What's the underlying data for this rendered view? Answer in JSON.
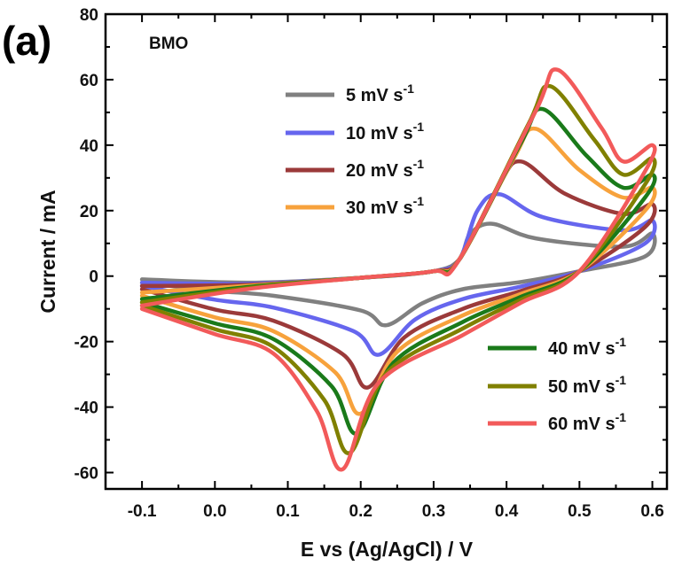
{
  "panel_label": "(a)",
  "chart_data": {
    "type": "line",
    "title": "BMO",
    "xlabel": "E vs (Ag/AgCl) / V",
    "ylabel": "Current / mA",
    "xlim": [
      -0.15,
      0.62
    ],
    "ylim": [
      -65,
      80
    ],
    "x_ticks": [
      "-0.1",
      "0.0",
      "0.1",
      "0.2",
      "0.3",
      "0.4",
      "0.5",
      "0.6"
    ],
    "y_ticks": [
      "80",
      "60",
      "40",
      "20",
      "0",
      "-20",
      "-40",
      "-60"
    ],
    "legend_placement": [
      "top-left (5–30 mV s-1)",
      "bottom-right (40–60 mV s-1)"
    ],
    "series": [
      {
        "name": "5 mV s",
        "unit_exp": "-1",
        "color": "#808080",
        "peak_anodic": [
          0.38,
          16
        ],
        "peak_cathodic": [
          0.235,
          -15
        ],
        "start": [
          -0.1,
          -1
        ],
        "end_top": 13,
        "end_bottom": 11,
        "plateau": 9,
        "oxidation_return": -4
      },
      {
        "name": "10 mV s",
        "unit_exp": "-1",
        "color": "#6666ee",
        "peak_anodic": [
          0.39,
          25
        ],
        "peak_cathodic": [
          0.225,
          -24
        ],
        "start": [
          -0.1,
          -2
        ],
        "end_top": 17,
        "end_bottom": 15,
        "plateau": 14,
        "oxidation_return": -7
      },
      {
        "name": "20 mV s",
        "unit_exp": "-1",
        "color": "#9b3a3a",
        "peak_anodic": [
          0.42,
          35
        ],
        "peak_cathodic": [
          0.21,
          -34
        ],
        "start": [
          -0.1,
          -3
        ],
        "end_top": 22,
        "end_bottom": 20,
        "plateau": 19,
        "oxidation_return": -10
      },
      {
        "name": "30 mV s",
        "unit_exp": "-1",
        "color": "#f7a23c",
        "peak_anodic": [
          0.44,
          45
        ],
        "peak_cathodic": [
          0.2,
          -42
        ],
        "start": [
          -0.1,
          -5
        ],
        "end_top": 27,
        "end_bottom": 25,
        "plateau": 24,
        "oxidation_return": -12
      },
      {
        "name": "40 mV s",
        "unit_exp": "-1",
        "color": "#1a7a1a",
        "peak_anodic": [
          0.45,
          51
        ],
        "peak_cathodic": [
          0.195,
          -48
        ],
        "start": [
          -0.1,
          -7
        ],
        "end_top": 31,
        "end_bottom": 29,
        "plateau": 27,
        "oxidation_return": -14
      },
      {
        "name": "50 mV s",
        "unit_exp": "-1",
        "color": "#808000",
        "peak_anodic": [
          0.46,
          58
        ],
        "peak_cathodic": [
          0.185,
          -54
        ],
        "start": [
          -0.1,
          -8
        ],
        "end_top": 36,
        "end_bottom": 33,
        "plateau": 31,
        "oxidation_return": -16
      },
      {
        "name": "60 mV s",
        "unit_exp": "-1",
        "color": "#f25a5a",
        "peak_anodic": [
          0.47,
          63
        ],
        "peak_cathodic": [
          0.175,
          -59
        ],
        "start": [
          -0.1,
          -9
        ],
        "end_top": 40,
        "end_bottom": 37,
        "plateau": 35,
        "oxidation_return": -18
      }
    ]
  }
}
